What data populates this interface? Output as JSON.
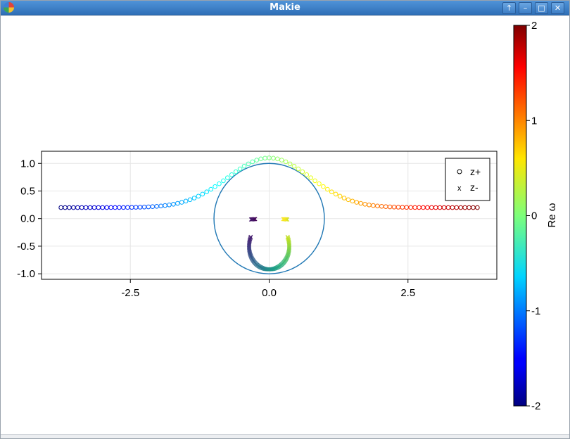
{
  "window": {
    "title": "Makie",
    "buttons": {
      "up": "↑",
      "minimize": "–",
      "maximize": "□",
      "close": "✕"
    }
  },
  "chart_data": {
    "type": "scatter",
    "x_ticks": [
      "-2.5",
      "0.0",
      "2.5"
    ],
    "y_ticks": [
      "1.0",
      "0.5",
      "0.0",
      "-0.5",
      "-1.0"
    ],
    "xlim": [
      -4.1,
      4.1
    ],
    "ylim": [
      -1.1,
      1.22
    ],
    "grid": true,
    "legend": {
      "position": "top-right",
      "entries": [
        {
          "marker": "o",
          "label": "z+"
        },
        {
          "marker": "x",
          "label": "z-"
        }
      ]
    },
    "unit_circle": {
      "center": [
        0,
        0
      ],
      "radius": 1,
      "color": "#1f77b4"
    },
    "colorbar": {
      "label": "Re ω",
      "range": [
        -2,
        2
      ],
      "ticks": [
        "2",
        "1",
        "0",
        "-1",
        "-2"
      ],
      "colormap": "jet"
    },
    "series": [
      {
        "name": "z+",
        "marker": "o",
        "colormap": "jet",
        "color_range": [
          -2,
          2
        ],
        "description_points": "x from -3.75 to 3.75, y = 0.2 + 0.9*exp(-(x/1.05)^2), color = x*2/3.75",
        "x_start": -3.75,
        "x_end": 3.75,
        "count": 101
      },
      {
        "name": "z-",
        "marker": "x",
        "colormap": "viridis",
        "t_start": 0.2,
        "t_end": 0.8,
        "count": 121,
        "radius_start": 0.28,
        "radius_end": 0.92
      }
    ]
  }
}
